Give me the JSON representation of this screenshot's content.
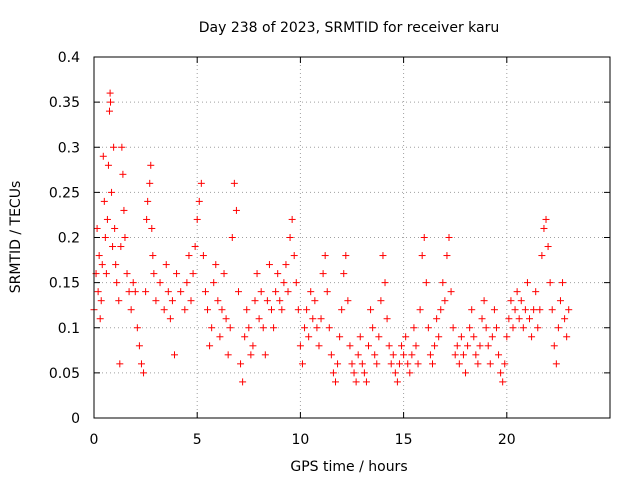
{
  "chart_data": {
    "type": "scatter",
    "title": "Day 238 of 2023, SRMTID for receiver karu",
    "xlabel": "GPS time / hours",
    "ylabel": "SRMTID / TECUs",
    "xlim": [
      0,
      25
    ],
    "ylim": [
      0,
      0.4
    ],
    "xticks": [
      0,
      5,
      10,
      15,
      20
    ],
    "yticks": [
      0,
      0.05,
      0.1,
      0.15,
      0.2,
      0.25,
      0.3,
      0.35,
      0.4
    ],
    "xtick_labels": [
      "0",
      "5",
      "10",
      "15",
      "20"
    ],
    "ytick_labels": [
      "0",
      "0.05",
      "0.1",
      "0.15",
      "0.2",
      "0.25",
      "0.3",
      "0.35",
      "0.4"
    ],
    "grid": true,
    "marker": "+",
    "marker_color": "#ff0000",
    "series": [
      {
        "name": "SRMTID",
        "points": [
          [
            0.0,
            0.12
          ],
          [
            0.1,
            0.16
          ],
          [
            0.15,
            0.21
          ],
          [
            0.2,
            0.14
          ],
          [
            0.25,
            0.18
          ],
          [
            0.3,
            0.11
          ],
          [
            0.35,
            0.13
          ],
          [
            0.4,
            0.17
          ],
          [
            0.45,
            0.29
          ],
          [
            0.5,
            0.24
          ],
          [
            0.55,
            0.2
          ],
          [
            0.6,
            0.16
          ],
          [
            0.65,
            0.22
          ],
          [
            0.7,
            0.28
          ],
          [
            0.75,
            0.34
          ],
          [
            0.78,
            0.36
          ],
          [
            0.8,
            0.35
          ],
          [
            0.85,
            0.25
          ],
          [
            0.9,
            0.19
          ],
          [
            0.95,
            0.3
          ],
          [
            1.0,
            0.21
          ],
          [
            1.05,
            0.17
          ],
          [
            1.1,
            0.15
          ],
          [
            1.2,
            0.13
          ],
          [
            1.25,
            0.06
          ],
          [
            1.3,
            0.19
          ],
          [
            1.35,
            0.3
          ],
          [
            1.4,
            0.27
          ],
          [
            1.45,
            0.23
          ],
          [
            1.5,
            0.2
          ],
          [
            1.6,
            0.16
          ],
          [
            1.7,
            0.14
          ],
          [
            1.8,
            0.12
          ],
          [
            1.9,
            0.15
          ],
          [
            2.0,
            0.14
          ],
          [
            2.1,
            0.1
          ],
          [
            2.2,
            0.08
          ],
          [
            2.3,
            0.06
          ],
          [
            2.4,
            0.05
          ],
          [
            2.5,
            0.14
          ],
          [
            2.55,
            0.22
          ],
          [
            2.6,
            0.24
          ],
          [
            2.7,
            0.26
          ],
          [
            2.75,
            0.28
          ],
          [
            2.8,
            0.21
          ],
          [
            2.85,
            0.18
          ],
          [
            2.9,
            0.16
          ],
          [
            3.0,
            0.13
          ],
          [
            3.2,
            0.15
          ],
          [
            3.4,
            0.12
          ],
          [
            3.5,
            0.17
          ],
          [
            3.6,
            0.14
          ],
          [
            3.7,
            0.11
          ],
          [
            3.8,
            0.13
          ],
          [
            3.9,
            0.07
          ],
          [
            4.0,
            0.16
          ],
          [
            4.2,
            0.14
          ],
          [
            4.4,
            0.12
          ],
          [
            4.5,
            0.15
          ],
          [
            4.6,
            0.18
          ],
          [
            4.7,
            0.13
          ],
          [
            4.8,
            0.16
          ],
          [
            4.9,
            0.19
          ],
          [
            5.0,
            0.22
          ],
          [
            5.1,
            0.24
          ],
          [
            5.2,
            0.26
          ],
          [
            5.3,
            0.18
          ],
          [
            5.4,
            0.14
          ],
          [
            5.5,
            0.12
          ],
          [
            5.6,
            0.08
          ],
          [
            5.7,
            0.1
          ],
          [
            5.8,
            0.15
          ],
          [
            5.9,
            0.17
          ],
          [
            6.0,
            0.13
          ],
          [
            6.1,
            0.09
          ],
          [
            6.2,
            0.12
          ],
          [
            6.3,
            0.16
          ],
          [
            6.4,
            0.11
          ],
          [
            6.5,
            0.07
          ],
          [
            6.6,
            0.1
          ],
          [
            6.7,
            0.2
          ],
          [
            6.8,
            0.26
          ],
          [
            6.9,
            0.23
          ],
          [
            7.0,
            0.14
          ],
          [
            7.1,
            0.06
          ],
          [
            7.2,
            0.04
          ],
          [
            7.3,
            0.09
          ],
          [
            7.4,
            0.12
          ],
          [
            7.5,
            0.1
          ],
          [
            7.6,
            0.07
          ],
          [
            7.7,
            0.08
          ],
          [
            7.8,
            0.13
          ],
          [
            7.9,
            0.16
          ],
          [
            8.0,
            0.11
          ],
          [
            8.1,
            0.14
          ],
          [
            8.2,
            0.1
          ],
          [
            8.3,
            0.07
          ],
          [
            8.4,
            0.13
          ],
          [
            8.5,
            0.17
          ],
          [
            8.6,
            0.12
          ],
          [
            8.7,
            0.1
          ],
          [
            8.8,
            0.14
          ],
          [
            8.9,
            0.16
          ],
          [
            9.0,
            0.13
          ],
          [
            9.1,
            0.12
          ],
          [
            9.2,
            0.15
          ],
          [
            9.3,
            0.17
          ],
          [
            9.4,
            0.14
          ],
          [
            9.5,
            0.2
          ],
          [
            9.6,
            0.22
          ],
          [
            9.7,
            0.18
          ],
          [
            9.8,
            0.15
          ],
          [
            9.9,
            0.12
          ],
          [
            10.0,
            0.08
          ],
          [
            10.1,
            0.06
          ],
          [
            10.2,
            0.1
          ],
          [
            10.3,
            0.12
          ],
          [
            10.4,
            0.09
          ],
          [
            10.5,
            0.14
          ],
          [
            10.6,
            0.11
          ],
          [
            10.7,
            0.13
          ],
          [
            10.8,
            0.1
          ],
          [
            10.9,
            0.08
          ],
          [
            11.0,
            0.11
          ],
          [
            11.1,
            0.16
          ],
          [
            11.2,
            0.18
          ],
          [
            11.3,
            0.14
          ],
          [
            11.4,
            0.1
          ],
          [
            11.5,
            0.07
          ],
          [
            11.6,
            0.05
          ],
          [
            11.7,
            0.04
          ],
          [
            11.8,
            0.06
          ],
          [
            11.9,
            0.09
          ],
          [
            12.0,
            0.12
          ],
          [
            12.1,
            0.16
          ],
          [
            12.2,
            0.18
          ],
          [
            12.3,
            0.13
          ],
          [
            12.4,
            0.08
          ],
          [
            12.5,
            0.06
          ],
          [
            12.6,
            0.05
          ],
          [
            12.7,
            0.04
          ],
          [
            12.8,
            0.07
          ],
          [
            12.9,
            0.09
          ],
          [
            13.0,
            0.06
          ],
          [
            13.1,
            0.05
          ],
          [
            13.2,
            0.04
          ],
          [
            13.3,
            0.08
          ],
          [
            13.4,
            0.12
          ],
          [
            13.5,
            0.1
          ],
          [
            13.6,
            0.07
          ],
          [
            13.7,
            0.06
          ],
          [
            13.8,
            0.09
          ],
          [
            13.9,
            0.13
          ],
          [
            14.0,
            0.18
          ],
          [
            14.1,
            0.15
          ],
          [
            14.2,
            0.11
          ],
          [
            14.3,
            0.08
          ],
          [
            14.4,
            0.06
          ],
          [
            14.5,
            0.07
          ],
          [
            14.6,
            0.05
          ],
          [
            14.7,
            0.04
          ],
          [
            14.8,
            0.06
          ],
          [
            14.9,
            0.08
          ],
          [
            15.0,
            0.07
          ],
          [
            15.1,
            0.09
          ],
          [
            15.2,
            0.06
          ],
          [
            15.3,
            0.05
          ],
          [
            15.4,
            0.07
          ],
          [
            15.5,
            0.1
          ],
          [
            15.6,
            0.08
          ],
          [
            15.7,
            0.06
          ],
          [
            15.8,
            0.12
          ],
          [
            15.9,
            0.18
          ],
          [
            16.0,
            0.2
          ],
          [
            16.1,
            0.15
          ],
          [
            16.2,
            0.1
          ],
          [
            16.3,
            0.07
          ],
          [
            16.4,
            0.06
          ],
          [
            16.5,
            0.08
          ],
          [
            16.6,
            0.11
          ],
          [
            16.7,
            0.09
          ],
          [
            16.8,
            0.12
          ],
          [
            16.9,
            0.15
          ],
          [
            17.0,
            0.13
          ],
          [
            17.1,
            0.18
          ],
          [
            17.2,
            0.2
          ],
          [
            17.3,
            0.14
          ],
          [
            17.4,
            0.1
          ],
          [
            17.5,
            0.07
          ],
          [
            17.6,
            0.08
          ],
          [
            17.7,
            0.06
          ],
          [
            17.8,
            0.09
          ],
          [
            17.9,
            0.07
          ],
          [
            18.0,
            0.05
          ],
          [
            18.1,
            0.08
          ],
          [
            18.2,
            0.1
          ],
          [
            18.3,
            0.12
          ],
          [
            18.4,
            0.09
          ],
          [
            18.5,
            0.07
          ],
          [
            18.6,
            0.06
          ],
          [
            18.7,
            0.08
          ],
          [
            18.8,
            0.11
          ],
          [
            18.9,
            0.13
          ],
          [
            19.0,
            0.1
          ],
          [
            19.1,
            0.08
          ],
          [
            19.2,
            0.06
          ],
          [
            19.3,
            0.09
          ],
          [
            19.4,
            0.12
          ],
          [
            19.5,
            0.1
          ],
          [
            19.6,
            0.07
          ],
          [
            19.7,
            0.05
          ],
          [
            19.8,
            0.04
          ],
          [
            19.9,
            0.06
          ],
          [
            20.0,
            0.09
          ],
          [
            20.1,
            0.11
          ],
          [
            20.2,
            0.13
          ],
          [
            20.3,
            0.1
          ],
          [
            20.4,
            0.12
          ],
          [
            20.5,
            0.14
          ],
          [
            20.6,
            0.11
          ],
          [
            20.7,
            0.13
          ],
          [
            20.8,
            0.1
          ],
          [
            20.9,
            0.12
          ],
          [
            21.0,
            0.15
          ],
          [
            21.1,
            0.11
          ],
          [
            21.2,
            0.09
          ],
          [
            21.3,
            0.12
          ],
          [
            21.4,
            0.14
          ],
          [
            21.5,
            0.1
          ],
          [
            21.6,
            0.12
          ],
          [
            21.7,
            0.18
          ],
          [
            21.8,
            0.21
          ],
          [
            21.9,
            0.22
          ],
          [
            22.0,
            0.19
          ],
          [
            22.1,
            0.15
          ],
          [
            22.2,
            0.12
          ],
          [
            22.3,
            0.08
          ],
          [
            22.4,
            0.06
          ],
          [
            22.5,
            0.1
          ],
          [
            22.6,
            0.13
          ],
          [
            22.7,
            0.15
          ],
          [
            22.8,
            0.11
          ],
          [
            22.9,
            0.09
          ],
          [
            23.0,
            0.12
          ]
        ]
      }
    ]
  }
}
